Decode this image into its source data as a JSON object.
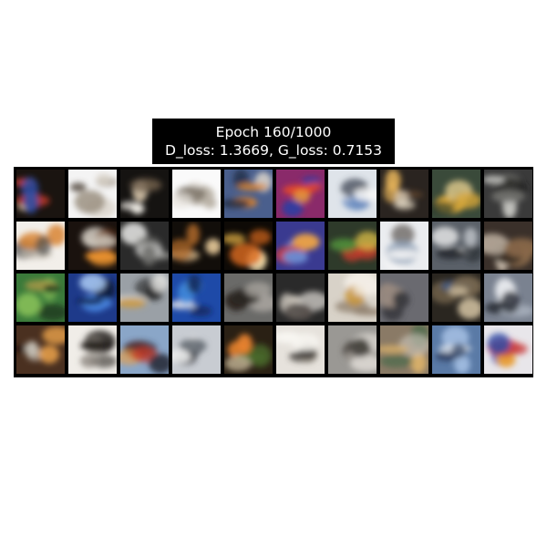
{
  "figure": {
    "title_line_1": "Epoch 160/1000",
    "title_line_2": "D_loss: 1.3669, G_loss: 0.7153"
  },
  "grid": {
    "rows": 4,
    "cols": 10,
    "tiles": [
      {
        "bg": "#1a1410",
        "c1": "#c63a2a",
        "c2": "#2f4fa8",
        "c3": "#e8d2b0"
      },
      {
        "bg": "#f4f4f4",
        "c1": "#9a8f80",
        "c2": "#d9d2c8",
        "c3": "#5b5048"
      },
      {
        "bg": "#151311",
        "c1": "#f2efe8",
        "c2": "#6b5a48",
        "c3": "#c9b9a0"
      },
      {
        "bg": "#fafafa",
        "c1": "#b8b0a4",
        "c2": "#e7e3dd",
        "c3": "#7d7468"
      },
      {
        "bg": "#4a5f8d",
        "c1": "#d9832f",
        "c2": "#1f2a40",
        "c3": "#e9e1d2"
      },
      {
        "bg": "#8a2a6a",
        "c1": "#e0452e",
        "c2": "#2b3fa3",
        "c3": "#e89c3a"
      },
      {
        "bg": "#dfe4ea",
        "c1": "#6a8cc0",
        "c2": "#f6f6f6",
        "c3": "#3a4250"
      },
      {
        "bg": "#2a2420",
        "c1": "#e6b45a",
        "c2": "#f2e6d0",
        "c3": "#6a4a30"
      },
      {
        "bg": "#3a4a3a",
        "c1": "#d8a83a",
        "c2": "#2a3a2a",
        "c3": "#e6cf90"
      },
      {
        "bg": "#3a3a3a",
        "c1": "#d6d6d2",
        "c2": "#7a7a76",
        "c3": "#1a1a1a"
      },
      {
        "bg": "#f2efea",
        "c1": "#d9822e",
        "c2": "#4a4a48",
        "c3": "#bfb7aa"
      },
      {
        "bg": "#1a120e",
        "c1": "#e8912e",
        "c2": "#c9c2b8",
        "c3": "#6a3a1e"
      },
      {
        "bg": "#2a2a2a",
        "c1": "#d8d8d6",
        "c2": "#6e6e6c",
        "c3": "#a8a8a4"
      },
      {
        "bg": "#120e0a",
        "c1": "#f0d2a0",
        "c2": "#b06a2a",
        "c3": "#3a2a1e"
      },
      {
        "bg": "#0e0a06",
        "c1": "#f7c04a",
        "c2": "#d86a1e",
        "c3": "#fbe8b8"
      },
      {
        "bg": "#3a3a90",
        "c1": "#c83a3a",
        "c2": "#6a8ad0",
        "c3": "#e6a04a"
      },
      {
        "bg": "#2e3a2a",
        "c1": "#c83a2a",
        "c2": "#4e8a3a",
        "c3": "#e6c64a"
      },
      {
        "bg": "#ebedf0",
        "c1": "#8a9cb4",
        "c2": "#f7f7f7",
        "c3": "#6a6660"
      },
      {
        "bg": "#5a6068",
        "c1": "#f2f2f2",
        "c2": "#2a2e34",
        "c3": "#b8bcc2"
      },
      {
        "bg": "#3a302a",
        "c1": "#e6d8c6",
        "c2": "#8a6a4a",
        "c3": "#1e1a16"
      },
      {
        "bg": "#3a7a3a",
        "c1": "#8ac25a",
        "c2": "#1e3a1e",
        "c3": "#c8a04a"
      },
      {
        "bg": "#1e3a8a",
        "c1": "#4a8ae6",
        "c2": "#0e1a40",
        "c3": "#a8c8f2"
      },
      {
        "bg": "#9aa0a6",
        "c1": "#2a2a2a",
        "c2": "#e6e6e4",
        "c3": "#c89a4a"
      },
      {
        "bg": "#1e4aa8",
        "c1": "#4a9ae8",
        "c2": "#0e1e4a",
        "c3": "#e8e8ec"
      },
      {
        "bg": "#6a6a68",
        "c1": "#2a2420",
        "c2": "#a8a49e",
        "c3": "#3a3632"
      },
      {
        "bg": "#2a2a2a",
        "c1": "#c8c2b8",
        "c2": "#5a5450",
        "c3": "#e8e4de"
      },
      {
        "bg": "#d8d2c8",
        "c1": "#8a7a66",
        "c2": "#f2ede6",
        "c3": "#c8922e"
      },
      {
        "bg": "#6a6a70",
        "c1": "#9a8a80",
        "c2": "#3a3a3e",
        "c3": "#b09a8a"
      },
      {
        "bg": "#2a2620",
        "c1": "#7a6a50",
        "c2": "#c8b89a",
        "c3": "#3a5a8a"
      },
      {
        "bg": "#7a8290",
        "c1": "#e8eaee",
        "c2": "#2a2e36",
        "c3": "#b8c0cc"
      },
      {
        "bg": "#4a3020",
        "c1": "#e8a04a",
        "c2": "#c8c2b8",
        "c3": "#2a1a12"
      },
      {
        "bg": "#f0ede8",
        "c1": "#3a3632",
        "c2": "#8a847c",
        "c3": "#1e1a18"
      },
      {
        "bg": "#8aa6c8",
        "c1": "#c83a2a",
        "c2": "#2a2e3a",
        "c3": "#e8a04a"
      },
      {
        "bg": "#c8ccd2",
        "c1": "#2a2e34",
        "c2": "#f6f6f6",
        "c3": "#6a7078"
      },
      {
        "bg": "#2a2014",
        "c1": "#e6822e",
        "c2": "#4a6a2a",
        "c3": "#c8b89a"
      },
      {
        "bg": "#e6e2dc",
        "c1": "#3a3632",
        "c2": "#f8f6f2",
        "c3": "#8a8478"
      },
      {
        "bg": "#9a9894",
        "c1": "#d8d4ce",
        "c2": "#4a4642",
        "c3": "#b8b2aa"
      },
      {
        "bg": "#8a7a66",
        "c1": "#d8b06a",
        "c2": "#4a6a4a",
        "c3": "#c8c2b8"
      },
      {
        "bg": "#5a7aa6",
        "c1": "#a8c2e6",
        "c2": "#2a3a5a",
        "c3": "#e8ecf2"
      },
      {
        "bg": "#e8e6ea",
        "c1": "#c83a3a",
        "c2": "#2a4aa8",
        "c3": "#e8a03a"
      }
    ]
  }
}
